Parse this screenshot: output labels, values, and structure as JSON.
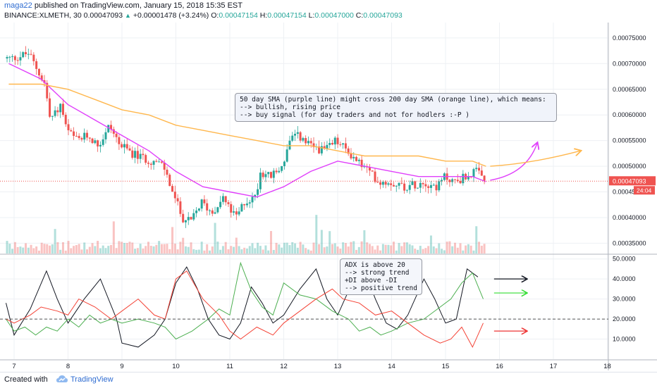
{
  "header": {
    "user": "maga22",
    "published": "published on TradingView.com, January 15, 2018 15:35 EST",
    "symbol": "BINANCE:XLMETH, 30",
    "last": "0.00047093",
    "change": "+0.00001478 (+3.24%)",
    "o_label": "O:",
    "o": "0.00047154",
    "h_label": "H:",
    "h": "0.00047154",
    "l_label": "L:",
    "l": "0.00047000",
    "c_label": "C:",
    "c": "0.00047093"
  },
  "annotations": {
    "sma_note": "50 day SMA (purple line) might cross 200 day SMA (orange line), which means:\n--> bullish, rising price\n--> buy signal (for day traders and not for hodlers :-P )",
    "adx_note": "ADX is above 20\n--> strong trend\n+DI above -DI\n--> positive trend"
  },
  "price_badge": "0.00047093",
  "countdown_badge": "24:04",
  "footer": {
    "created": "Created with",
    "brand": "TradingView"
  },
  "colors": {
    "up": "#26a69a",
    "down": "#ef5350",
    "sma50": "#e040fb",
    "sma200": "#ffb74d",
    "adx": "#131722",
    "plus_di": "#4caf50",
    "minus_di": "#f44336",
    "grid": "#eef0f4"
  },
  "chart_data": [
    {
      "type": "candlestick",
      "title": "",
      "x": [
        "7",
        "8",
        "9",
        "10",
        "11",
        "12",
        "13",
        "14",
        "15",
        "16",
        "17",
        "18"
      ],
      "y_ticks": [
        "0.00075000",
        "0.00070000",
        "0.00065000",
        "0.00060000",
        "0.00055000",
        "0.00050000",
        "0.00045000",
        "0.00040000",
        "0.00035000"
      ],
      "ylim": [
        0.00033,
        0.00078
      ],
      "close_path": [
        [
          7.0,
          0.00071
        ],
        [
          7.3,
          0.00072
        ],
        [
          7.45,
          0.00069
        ],
        [
          7.6,
          0.00066
        ],
        [
          7.7,
          0.00059
        ],
        [
          7.9,
          0.00062
        ],
        [
          8.0,
          0.00057
        ],
        [
          8.2,
          0.00055
        ],
        [
          8.4,
          0.00056
        ],
        [
          8.6,
          0.00054
        ],
        [
          8.8,
          0.00058
        ],
        [
          9.0,
          0.00054
        ],
        [
          9.3,
          0.00052
        ],
        [
          9.6,
          0.00051
        ],
        [
          9.8,
          0.0005
        ],
        [
          10.0,
          0.00044
        ],
        [
          10.15,
          0.0004
        ],
        [
          10.3,
          0.00039
        ],
        [
          10.5,
          0.00043
        ],
        [
          10.7,
          0.00041
        ],
        [
          10.9,
          0.00044
        ],
        [
          11.0,
          0.00042
        ],
        [
          11.15,
          0.0004
        ],
        [
          11.3,
          0.00043
        ],
        [
          11.5,
          0.00044
        ],
        [
          11.6,
          0.00049
        ],
        [
          11.8,
          0.00048
        ],
        [
          12.0,
          0.0005
        ],
        [
          12.15,
          0.00055
        ],
        [
          12.3,
          0.00056
        ],
        [
          12.5,
          0.00054
        ],
        [
          12.8,
          0.00053
        ],
        [
          13.0,
          0.00055
        ],
        [
          13.2,
          0.00053
        ],
        [
          13.4,
          0.00051
        ],
        [
          13.6,
          0.00049
        ],
        [
          13.8,
          0.00047
        ],
        [
          14.0,
          0.00047
        ],
        [
          14.3,
          0.00046
        ],
        [
          14.6,
          0.00047
        ],
        [
          14.9,
          0.00046
        ],
        [
          15.0,
          0.00048
        ],
        [
          15.2,
          0.00047
        ],
        [
          15.4,
          0.00048
        ],
        [
          15.6,
          0.00049
        ],
        [
          15.75,
          0.00047
        ]
      ],
      "series": [
        {
          "name": "50 day SMA (purple line)",
          "points": [
            [
              6.9,
              0.0007
            ],
            [
              7.5,
              0.00067
            ],
            [
              8.0,
              0.00062
            ],
            [
              8.5,
              0.00059
            ],
            [
              9.0,
              0.00056
            ],
            [
              9.5,
              0.00053
            ],
            [
              10.0,
              0.00049
            ],
            [
              10.5,
              0.00046
            ],
            [
              11.0,
              0.00045
            ],
            [
              11.5,
              0.00044
            ],
            [
              12.0,
              0.00046
            ],
            [
              12.5,
              0.00049
            ],
            [
              13.0,
              0.00051
            ],
            [
              13.5,
              0.0005
            ],
            [
              14.0,
              0.00049
            ],
            [
              14.5,
              0.00048
            ],
            [
              15.0,
              0.00048
            ],
            [
              15.5,
              0.00048
            ],
            [
              15.75,
              0.00047
            ]
          ]
        },
        {
          "name": "200 day SMA (orange line)",
          "points": [
            [
              6.9,
              0.00066
            ],
            [
              7.5,
              0.00066
            ],
            [
              8.0,
              0.00065
            ],
            [
              8.5,
              0.00063
            ],
            [
              9.0,
              0.00061
            ],
            [
              9.5,
              0.0006
            ],
            [
              10.0,
              0.00058
            ],
            [
              10.5,
              0.00057
            ],
            [
              11.0,
              0.00056
            ],
            [
              11.5,
              0.00055
            ],
            [
              12.0,
              0.00054
            ],
            [
              12.5,
              0.00054
            ],
            [
              13.0,
              0.00053
            ],
            [
              13.5,
              0.00052
            ],
            [
              14.0,
              0.00052
            ],
            [
              14.5,
              0.00052
            ],
            [
              15.0,
              0.00051
            ],
            [
              15.5,
              0.00051
            ],
            [
              15.75,
              0.0005
            ]
          ]
        }
      ],
      "projection": {
        "sma50_to": [
          16.7,
          0.000545
        ],
        "sma200_to": [
          17.5,
          0.00053
        ]
      }
    },
    {
      "type": "line",
      "title": "",
      "y_ticks": [
        "50.0000",
        "40.0000",
        "30.0000",
        "20.0000",
        "10.0000"
      ],
      "ylim": [
        0,
        52
      ],
      "reference_line": 20,
      "series": [
        {
          "name": "ADX",
          "points": [
            [
              6.85,
              28
            ],
            [
              7.0,
              12
            ],
            [
              7.3,
              25
            ],
            [
              7.6,
              44
            ],
            [
              7.8,
              30
            ],
            [
              8.0,
              18
            ],
            [
              8.3,
              30
            ],
            [
              8.6,
              40
            ],
            [
              8.9,
              20
            ],
            [
              9.0,
              8
            ],
            [
              9.3,
              6
            ],
            [
              9.6,
              12
            ],
            [
              9.8,
              20
            ],
            [
              10.0,
              38
            ],
            [
              10.2,
              46
            ],
            [
              10.4,
              35
            ],
            [
              10.6,
              20
            ],
            [
              10.8,
              12
            ],
            [
              11.0,
              10
            ],
            [
              11.2,
              18
            ],
            [
              11.4,
              36
            ],
            [
              11.6,
              28
            ],
            [
              11.8,
              18
            ],
            [
              12.0,
              22
            ],
            [
              12.3,
              35
            ],
            [
              12.6,
              45
            ],
            [
              12.8,
              30
            ],
            [
              13.0,
              22
            ],
            [
              13.3,
              40
            ],
            [
              13.5,
              44
            ],
            [
              13.7,
              30
            ],
            [
              13.9,
              18
            ],
            [
              14.1,
              15
            ],
            [
              14.3,
              22
            ],
            [
              14.6,
              40
            ],
            [
              14.8,
              30
            ],
            [
              15.0,
              18
            ],
            [
              15.2,
              20
            ],
            [
              15.4,
              45
            ],
            [
              15.6,
              41
            ]
          ]
        },
        {
          "name": "+DI",
          "points": [
            [
              6.85,
              20
            ],
            [
              7.0,
              14
            ],
            [
              7.2,
              16
            ],
            [
              7.4,
              12
            ],
            [
              7.6,
              16
            ],
            [
              7.8,
              14
            ],
            [
              8.0,
              20
            ],
            [
              8.2,
              16
            ],
            [
              8.4,
              22
            ],
            [
              8.6,
              18
            ],
            [
              8.8,
              20
            ],
            [
              9.0,
              18
            ],
            [
              9.3,
              20
            ],
            [
              9.6,
              18
            ],
            [
              9.8,
              16
            ],
            [
              10.0,
              10
            ],
            [
              10.3,
              14
            ],
            [
              10.6,
              20
            ],
            [
              10.8,
              25
            ],
            [
              11.0,
              22
            ],
            [
              11.2,
              48
            ],
            [
              11.4,
              34
            ],
            [
              11.6,
              26
            ],
            [
              11.8,
              22
            ],
            [
              12.0,
              38
            ],
            [
              12.3,
              32
            ],
            [
              12.6,
              30
            ],
            [
              12.9,
              24
            ],
            [
              13.2,
              20
            ],
            [
              13.4,
              14
            ],
            [
              13.6,
              16
            ],
            [
              13.8,
              12
            ],
            [
              14.0,
              14
            ],
            [
              14.3,
              18
            ],
            [
              14.6,
              20
            ],
            [
              14.9,
              26
            ],
            [
              15.1,
              30
            ],
            [
              15.3,
              38
            ],
            [
              15.5,
              43
            ],
            [
              15.7,
              30
            ]
          ]
        },
        {
          "name": "-DI",
          "points": [
            [
              6.85,
              20
            ],
            [
              7.0,
              18
            ],
            [
              7.3,
              22
            ],
            [
              7.5,
              26
            ],
            [
              7.8,
              24
            ],
            [
              8.0,
              22
            ],
            [
              8.2,
              30
            ],
            [
              8.5,
              26
            ],
            [
              8.8,
              20
            ],
            [
              9.0,
              24
            ],
            [
              9.3,
              30
            ],
            [
              9.6,
              22
            ],
            [
              9.8,
              20
            ],
            [
              10.0,
              40
            ],
            [
              10.2,
              44
            ],
            [
              10.5,
              30
            ],
            [
              10.8,
              22
            ],
            [
              11.0,
              14
            ],
            [
              11.2,
              10
            ],
            [
              11.5,
              16
            ],
            [
              11.8,
              12
            ],
            [
              12.0,
              18
            ],
            [
              12.3,
              24
            ],
            [
              12.6,
              30
            ],
            [
              12.9,
              35
            ],
            [
              13.1,
              30
            ],
            [
              13.4,
              28
            ],
            [
              13.7,
              22
            ],
            [
              14.0,
              24
            ],
            [
              14.3,
              18
            ],
            [
              14.6,
              12
            ],
            [
              14.9,
              8
            ],
            [
              15.1,
              10
            ],
            [
              15.3,
              16
            ],
            [
              15.5,
              6
            ],
            [
              15.7,
              18
            ]
          ]
        }
      ]
    }
  ]
}
